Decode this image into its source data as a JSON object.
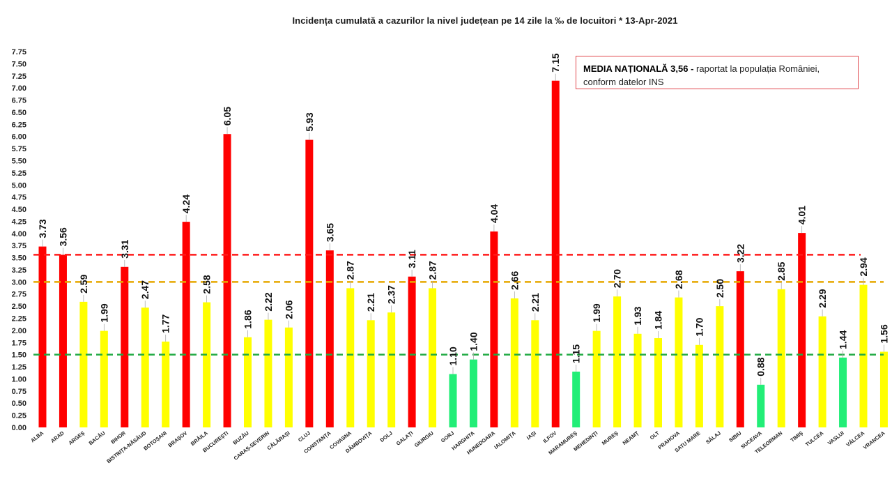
{
  "chart_data": {
    "type": "bar",
    "title": "Incidența cumulată a cazurilor la nivel județean pe 14 zile la ‰ de locuitori *   13-Apr-2021",
    "xlabel": "",
    "ylabel": "",
    "ylim": [
      0,
      7.75
    ],
    "ytick_step": 0.25,
    "grid": false,
    "categories": [
      "ALBA",
      "ARAD",
      "ARGEȘ",
      "BACĂU",
      "BIHOR",
      "BISTRIȚA-NĂSĂUD",
      "BOTOȘANI",
      "BRAȘOV",
      "BRĂILA",
      "BUCUREȘTI",
      "BUZĂU",
      "CARAȘ-SEVERIN",
      "CĂLĂRAȘI",
      "CLUJ",
      "CONSTANȚA",
      "COVASNA",
      "DÂMBOVIȚA",
      "DOLJ",
      "GALAȚI",
      "GIURGIU",
      "GORJ",
      "HARGHITA",
      "HUNEDOARA",
      "IALOMIȚA",
      "IAȘI",
      "ILFOV",
      "MARAMUREȘ",
      "MEHEDINȚI",
      "MUREȘ",
      "NEAMȚ",
      "OLT",
      "PRAHOVA",
      "SATU MARE",
      "SĂLAJ",
      "SIBIU",
      "SUCEAVA",
      "TELEORMAN",
      "TIMIȘ",
      "TULCEA",
      "VASLUI",
      "VÂLCEA",
      "VRANCEA"
    ],
    "values": [
      3.73,
      3.56,
      2.59,
      1.99,
      3.31,
      2.47,
      1.77,
      4.24,
      2.58,
      6.05,
      1.86,
      2.22,
      2.06,
      5.93,
      3.65,
      2.87,
      2.21,
      2.37,
      3.11,
      2.87,
      1.1,
      1.4,
      4.04,
      2.66,
      2.21,
      7.15,
      1.15,
      1.99,
      2.7,
      1.93,
      1.84,
      2.68,
      1.7,
      2.5,
      3.22,
      0.88,
      2.85,
      4.01,
      2.29,
      1.44,
      2.94,
      1.56
    ],
    "value_labels": [
      "3.73",
      "3.56",
      "2.59",
      "1.99",
      "3.31",
      "2.47",
      "1.77",
      "4.24",
      "2.58",
      "6.05",
      "1.86",
      "2.22",
      "2.06",
      "5.93",
      "3.65",
      "2.87",
      "2.21",
      "2.37",
      "3.11",
      "2.87",
      "1.10",
      "1.40",
      "4.04",
      "2.66",
      "2.21",
      "7.15",
      "1.15",
      "1.99",
      "2.70",
      "1.93",
      "1.84",
      "2.68",
      "1.70",
      "2.50",
      "3.22",
      "0.88",
      "2.85",
      "4.01",
      "2.29",
      "1.44",
      "2.94",
      "1.56"
    ],
    "thresholds": [
      {
        "value": 3.56,
        "color": "#ff1a1a"
      },
      {
        "value": 3.0,
        "color": "#e6a800"
      },
      {
        "value": 1.5,
        "color": "#22aa44"
      }
    ],
    "colors": {
      "high": "#ff0000",
      "mid": "#ffff00",
      "low": "#22ee77"
    }
  },
  "note": {
    "bold": "MEDIA NAȚIONALĂ  3,56 - ",
    "text": "raportat la populația României,",
    "line2": "conform datelor INS"
  }
}
